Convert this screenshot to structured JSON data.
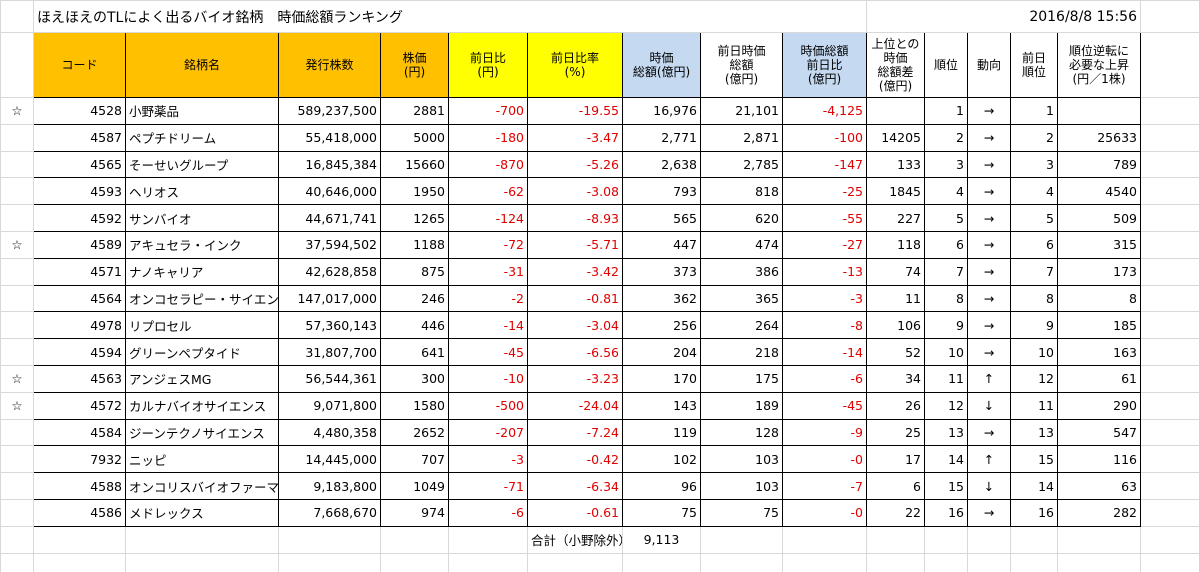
{
  "title": "ほえほえのTLによく出るバイオ銘柄　時価総額ランキング",
  "timestamp": "2016/8/8 15:56",
  "columns": [
    "コード",
    "銘柄名",
    "発行株数",
    "株価\n(円)",
    "前日比\n(円)",
    "前日比率\n(%)",
    "時価\n総額(億円)",
    "前日時価\n総額\n(億円)",
    "時価総額\n前日比\n(億円)",
    "上位との\n時価\n総額差\n(億円)",
    "順位",
    "動向",
    "前日\n順位",
    "順位逆転に\n必要な上昇\n(円／1株)"
  ],
  "rows": [
    [
      "☆",
      "4528",
      "小野薬品",
      "589,237,500",
      "2881",
      "-700",
      "-19.55",
      "16,976",
      "21,101",
      "-4,125",
      null,
      "1",
      "→",
      "1",
      null
    ],
    [
      null,
      "4587",
      "ペプチドリーム",
      "55,418,000",
      "5000",
      "-180",
      "-3.47",
      "2,771",
      "2,871",
      "-100",
      "14205",
      "2",
      "→",
      "2",
      "25633"
    ],
    [
      null,
      "4565",
      "そーせいグループ",
      "16,845,384",
      "15660",
      "-870",
      "-5.26",
      "2,638",
      "2,785",
      "-147",
      "133",
      "3",
      "→",
      "3",
      "789"
    ],
    [
      null,
      "4593",
      "ヘリオス",
      "40,646,000",
      "1950",
      "-62",
      "-3.08",
      "793",
      "818",
      "-25",
      "1845",
      "4",
      "→",
      "4",
      "4540"
    ],
    [
      null,
      "4592",
      "サンバイオ",
      "44,671,741",
      "1265",
      "-124",
      "-8.93",
      "565",
      "620",
      "-55",
      "227",
      "5",
      "→",
      "5",
      "509"
    ],
    [
      "☆",
      "4589",
      "アキュセラ・インク",
      "37,594,502",
      "1188",
      "-72",
      "-5.71",
      "447",
      "474",
      "-27",
      "118",
      "6",
      "→",
      "6",
      "315"
    ],
    [
      null,
      "4571",
      "ナノキャリア",
      "42,628,858",
      "875",
      "-31",
      "-3.42",
      "373",
      "386",
      "-13",
      "74",
      "7",
      "→",
      "7",
      "173"
    ],
    [
      null,
      "4564",
      "オンコセラピー・サイエンス",
      "147,017,000",
      "246",
      "-2",
      "-0.81",
      "362",
      "365",
      "-3",
      "11",
      "8",
      "→",
      "8",
      "8"
    ],
    [
      null,
      "4978",
      "リプロセル",
      "57,360,143",
      "446",
      "-14",
      "-3.04",
      "256",
      "264",
      "-8",
      "106",
      "9",
      "→",
      "9",
      "185"
    ],
    [
      null,
      "4594",
      "グリーンペプタイド",
      "31,807,700",
      "641",
      "-45",
      "-6.56",
      "204",
      "218",
      "-14",
      "52",
      "10",
      "→",
      "10",
      "163"
    ],
    [
      "☆",
      "4563",
      "アンジェスMG",
      "56,544,361",
      "300",
      "-10",
      "-3.23",
      "170",
      "175",
      "-6",
      "34",
      "11",
      "↑",
      "12",
      "61"
    ],
    [
      "☆",
      "4572",
      "カルナバイオサイエンス",
      "9,071,800",
      "1580",
      "-500",
      "-24.04",
      "143",
      "189",
      "-45",
      "26",
      "12",
      "↓",
      "11",
      "290"
    ],
    [
      null,
      "4584",
      "ジーンテクノサイエンス",
      "4,480,358",
      "2652",
      "-207",
      "-7.24",
      "119",
      "128",
      "-9",
      "25",
      "13",
      "→",
      "13",
      "547"
    ],
    [
      null,
      "7932",
      "ニッピ",
      "14,445,000",
      "707",
      "-3",
      "-0.42",
      "102",
      "103",
      "-0",
      "17",
      "14",
      "↑",
      "15",
      "116"
    ],
    [
      null,
      "4588",
      "オンコリスバイオファーマ",
      "9,183,800",
      "1049",
      "-71",
      "-6.34",
      "96",
      "103",
      "-7",
      "6",
      "15",
      "↓",
      "14",
      "63"
    ],
    [
      null,
      "4586",
      "メドレックス",
      "7,668,670",
      "974",
      "-6",
      "-0.61",
      "75",
      "75",
      "-0",
      "22",
      "16",
      "→",
      "16",
      "282"
    ]
  ],
  "total": {
    "label": "合計（小野除外）",
    "value": "9,113"
  }
}
